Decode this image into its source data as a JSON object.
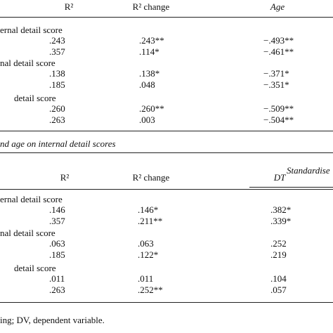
{
  "panel_a": {
    "header": [
      "R²",
      "R² change",
      "Age"
    ],
    "groups": [
      {
        "label": "ernal detail score",
        "rows": [
          [
            ".243",
            ".243**",
            "−.493**"
          ],
          [
            ".357",
            ".114*",
            "−.461**"
          ]
        ]
      },
      {
        "label": "nal detail score",
        "rows": [
          [
            ".138",
            ".138*",
            "−.371*"
          ],
          [
            ".185",
            ".048",
            "−.351*"
          ]
        ]
      },
      {
        "label": "detail score",
        "rows": [
          [
            ".260",
            ".260**",
            "−.509**"
          ],
          [
            ".263",
            ".003",
            "−.504**"
          ]
        ]
      }
    ]
  },
  "caption": "nd age on internal detail scores",
  "panel_b": {
    "spanner": "Standardise",
    "header": [
      "R²",
      "R² change",
      "DT"
    ],
    "groups": [
      {
        "label": "ernal detail score",
        "rows": [
          [
            ".146",
            ".146*",
            ".382*"
          ],
          [
            ".357",
            ".211**",
            ".339*"
          ]
        ]
      },
      {
        "label": "nal detail score",
        "rows": [
          [
            ".063",
            ".063",
            ".252"
          ],
          [
            ".185",
            ".122*",
            ".219"
          ]
        ]
      },
      {
        "label": "detail score",
        "rows": [
          [
            ".011",
            ".011",
            ".104"
          ],
          [
            ".263",
            ".252**",
            ".057"
          ]
        ]
      }
    ]
  },
  "footnote": "ing; DV, dependent variable."
}
